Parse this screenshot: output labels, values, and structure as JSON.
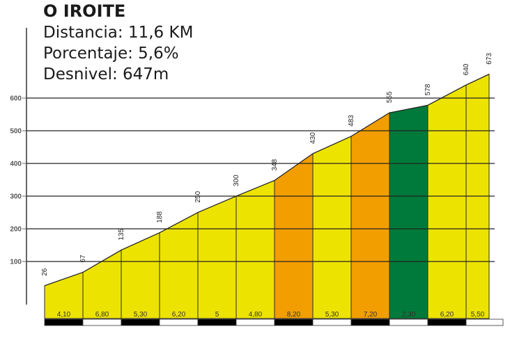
{
  "header": {
    "title": "O IROITE",
    "distance": "Distancia: 11,6 KM",
    "percentage": "Porcentaje: 5,6%",
    "elevation_gain": "Desnivel: 647m"
  },
  "colors": {
    "yellow": "#EDE300",
    "orange": "#F29E00",
    "green": "#007A3A",
    "grid": "#222222",
    "axis": "#666666"
  },
  "chart_data": {
    "type": "area",
    "title": "O IROITE",
    "subtitle": [
      "Distancia: 11,6 KM",
      "Porcentaje: 5,6%",
      "Desnivel: 647m"
    ],
    "xlabel": "",
    "ylabel": "",
    "ylim": [
      0,
      700
    ],
    "yticks": [
      100,
      200,
      300,
      400,
      500,
      600
    ],
    "grid": true,
    "x_km": [
      0,
      1,
      2,
      3,
      4,
      5,
      6,
      7,
      8,
      9,
      10,
      11,
      11.6
    ],
    "elevations": [
      26,
      67,
      135,
      188,
      250,
      300,
      348,
      430,
      483,
      555,
      578,
      640,
      673
    ],
    "segments": [
      {
        "gradient": "4,10",
        "color": "yellow"
      },
      {
        "gradient": "6,80",
        "color": "yellow"
      },
      {
        "gradient": "5,30",
        "color": "yellow"
      },
      {
        "gradient": "6,20",
        "color": "yellow"
      },
      {
        "gradient": "5",
        "color": "yellow"
      },
      {
        "gradient": "4,80",
        "color": "yellow"
      },
      {
        "gradient": "8,20",
        "color": "orange"
      },
      {
        "gradient": "5,30",
        "color": "yellow"
      },
      {
        "gradient": "7,20",
        "color": "orange"
      },
      {
        "gradient": "2,30",
        "color": "green"
      },
      {
        "gradient": "6,20",
        "color": "yellow"
      },
      {
        "gradient": "5,50",
        "color": "yellow"
      }
    ]
  }
}
